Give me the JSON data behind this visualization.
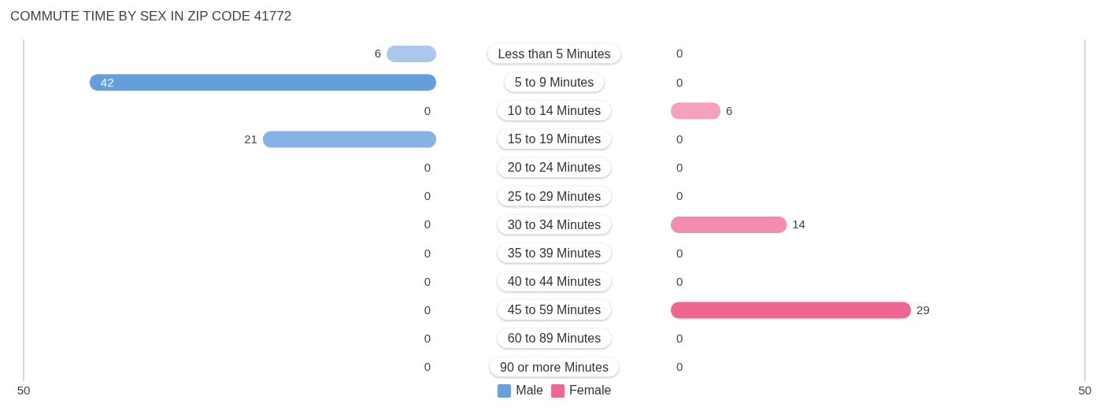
{
  "chart_data": [
    {
      "type": "bar",
      "orientation": "horizontal",
      "title": "COMMUTE TIME BY SEX IN ZIP CODE 41772",
      "categories": [
        "Less than 5 Minutes",
        "5 to 9 Minutes",
        "10 to 14 Minutes",
        "15 to 19 Minutes",
        "20 to 24 Minutes",
        "25 to 29 Minutes",
        "30 to 34 Minutes",
        "35 to 39 Minutes",
        "40 to 44 Minutes",
        "45 to 59 Minutes",
        "60 to 89 Minutes",
        "90 or more Minutes"
      ],
      "series": [
        {
          "name": "Male",
          "color": "#6a9fdc",
          "values": [
            6,
            42,
            0,
            21,
            0,
            0,
            0,
            0,
            0,
            0,
            0,
            0
          ],
          "colors": [
            "#a9c8eb",
            "#659fdb",
            "#a9c8eb",
            "#86b3e5",
            "#a9c8eb",
            "#a9c8eb",
            "#a9c8eb",
            "#a9c8eb",
            "#a9c8eb",
            "#a9c8eb",
            "#a9c8eb",
            "#a9c8eb"
          ]
        }
      ],
      "xlim": [
        50,
        0
      ],
      "xticks": [
        50
      ],
      "ref_lines": [
        {
          "axis": "x",
          "value": 50,
          "color": "#cccccc"
        }
      ],
      "legend": "bottom",
      "data_labels": true
    },
    {
      "type": "bar",
      "orientation": "horizontal",
      "categories": [
        null,
        null,
        null,
        null,
        null,
        null,
        null,
        null,
        null,
        null,
        null,
        null
      ],
      "series": [
        {
          "name": "Female",
          "color": "#f06892",
          "values": [
            0,
            0,
            6,
            0,
            0,
            0,
            14,
            0,
            0,
            29,
            0,
            0
          ],
          "colors": [
            "#f7b0c8",
            "#f7b0c8",
            "#f5a0bc",
            "#f7b0c8",
            "#f7b0c8",
            "#f7b0c8",
            "#f48cab",
            "#f7b0c8",
            "#f7b0c8",
            "#f06690",
            "#f7b0c8",
            "#f7b0c8"
          ]
        }
      ],
      "xlim": [
        0,
        50
      ],
      "xticks": [
        50
      ],
      "ref_lines": [
        {
          "axis": "x",
          "value": 50,
          "color": "#cccccc"
        }
      ],
      "legend": "bottom",
      "data_labels": true,
      "tick_labels": "x"
    }
  ]
}
